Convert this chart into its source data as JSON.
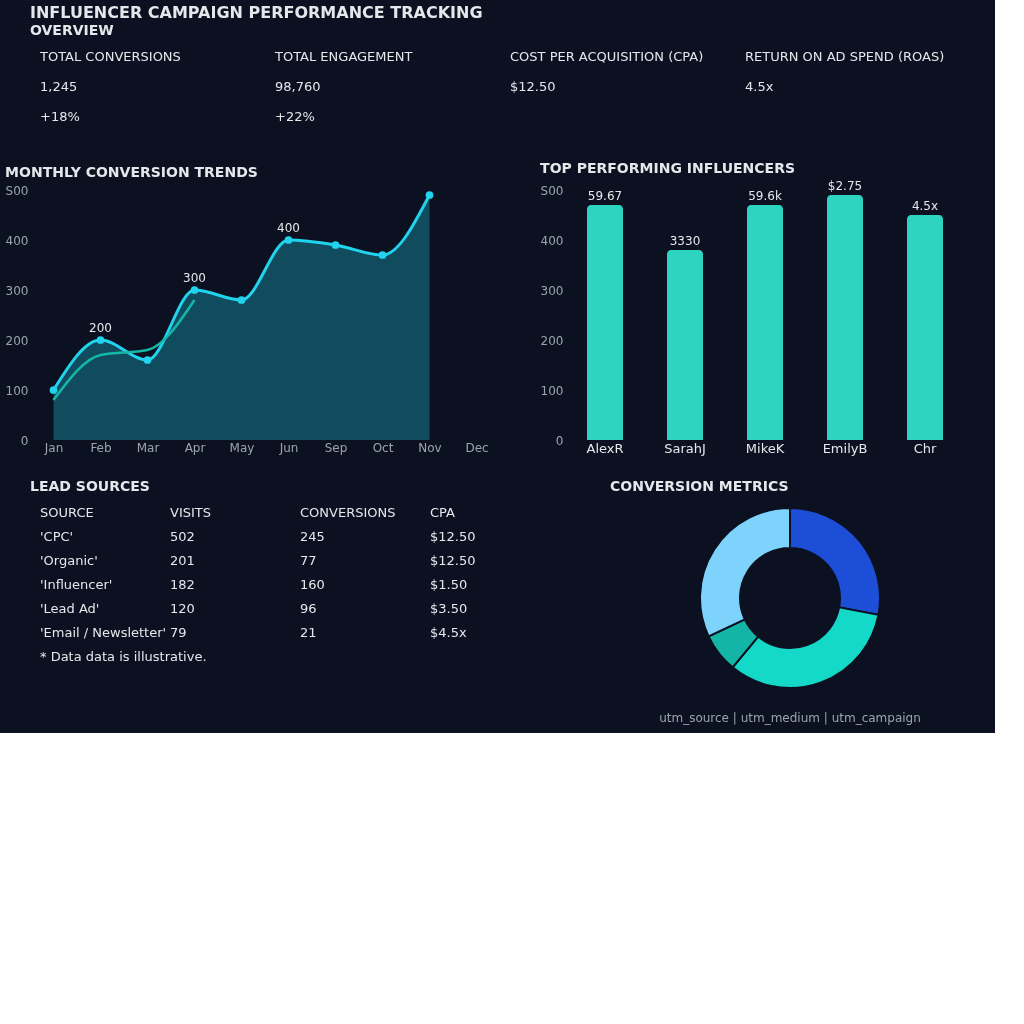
{
  "chart_data": [
    {
      "type": "other",
      "title": "INFLUENCER CAMPAIGN PERFORMANCE TRACKING",
      "subtitle": "OVERVIEW",
      "annotations": [
        "TOTAL CONVERSIONS",
        "TOTAL ENGAGEMENT",
        "COST PER ACQUISITION (CPA)",
        "RETURN ON AD SPEND (ROAS)",
        "1,245",
        "98,760",
        "$12.50",
        "4.5x",
        "+18%",
        "+22%"
      ]
    },
    {
      "type": "line",
      "title": "MONTHLY CONVERSION TRENDS",
      "categories": [
        "Jan",
        "Feb",
        "Mar",
        "Apr",
        "May",
        "Jun",
        "Sep",
        "Oct",
        "Nov",
        "Dec"
      ],
      "ylim": [
        0,
        500
      ],
      "yticks": [
        0,
        100,
        200,
        300,
        400,
        {
          "value": 500,
          "label": "S00"
        }
      ],
      "series": [
        {
          "type": "area",
          "color": "#22d3ee",
          "marker": "circle",
          "values": [
            100,
            200,
            160,
            300,
            280,
            400,
            390,
            370,
            490,
            null
          ],
          "value_labels": [
            null,
            "200",
            null,
            "300",
            null,
            "400",
            null,
            null,
            null,
            null
          ]
        },
        {
          "type": "line",
          "color": "#14b8a6",
          "values": [
            80,
            170,
            180,
            280,
            null,
            null,
            null,
            null,
            null,
            null
          ]
        }
      ]
    },
    {
      "type": "bar",
      "title": "TOP PERFORMING INFLUENCERS",
      "categories": [
        "AlexR",
        "SarahJ",
        "MikeK",
        "EmilyB",
        "Chr"
      ],
      "values": [
        470,
        380,
        470,
        490,
        450
      ],
      "color": "#2dd4bf",
      "annotations": [
        {
          "text": "59.67",
          "x": "AlexR",
          "y": 470
        },
        {
          "text": "3330",
          "x": "SarahJ",
          "y": 380
        },
        {
          "text": "59.6k",
          "x": "MikeK",
          "y": 470
        },
        {
          "text": "$2.75",
          "x": "EmilyB",
          "y": 490
        },
        {
          "text": "4.5x",
          "x": "Chr",
          "y": 450
        }
      ],
      "ylim": [
        0,
        500
      ],
      "yticks": [
        0,
        100,
        200,
        300,
        400,
        {
          "value": 500,
          "label": "S00"
        }
      ]
    },
    {
      "type": "other",
      "title": "LEAD SOURCES",
      "annotations": [
        "SOURCE",
        "VISITS",
        "CONVERSIONS",
        "CPA",
        "'CPC'",
        "502",
        "245",
        "$12.50",
        "'Organic'",
        "201",
        "77",
        "$12.50",
        "'Influencer'",
        "182",
        "160",
        "$1.50",
        "'Lead Ad'",
        "120",
        "96",
        "$3.50",
        "'Email / Newsletter'",
        "79",
        "21",
        "$4.5x",
        "* Data data is illustrative."
      ]
    },
    {
      "type": "donut",
      "title": "CONVERSION METRICS",
      "categories": [
        null,
        null,
        null,
        null
      ],
      "values": [
        28,
        33,
        7,
        32
      ],
      "colors": [
        "#1d4ed8",
        "#14d9c8",
        "#13b5a6",
        "#7dd3fc"
      ],
      "annotations": [
        "utm_source | utm_medium | utm_campaign"
      ]
    }
  ]
}
